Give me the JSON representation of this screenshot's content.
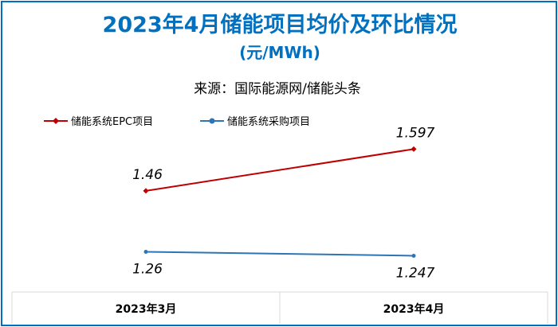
{
  "colors": {
    "title": "#0070c0",
    "frame": "#0070c0",
    "series1": "#c00000",
    "series2": "#2e75b6"
  },
  "chart_data": {
    "type": "line",
    "title": "2023年4月储能项目均价及环比情况",
    "unit": "(元/MWh)",
    "subtitle": "来源：国际能源网/储能头条",
    "categories": [
      "2023年3月",
      "2023年4月"
    ],
    "series": [
      {
        "name": "储能系统EPC项目",
        "values": [
          1.46,
          1.597
        ],
        "labels": [
          "1.46",
          "1.597"
        ]
      },
      {
        "name": "储能系统采购项目",
        "values": [
          1.26,
          1.247
        ],
        "labels": [
          "1.26",
          "1.247"
        ]
      }
    ],
    "ylim": [
      0.7,
      2.0
    ],
    "legend": "top-left",
    "grid": false
  }
}
